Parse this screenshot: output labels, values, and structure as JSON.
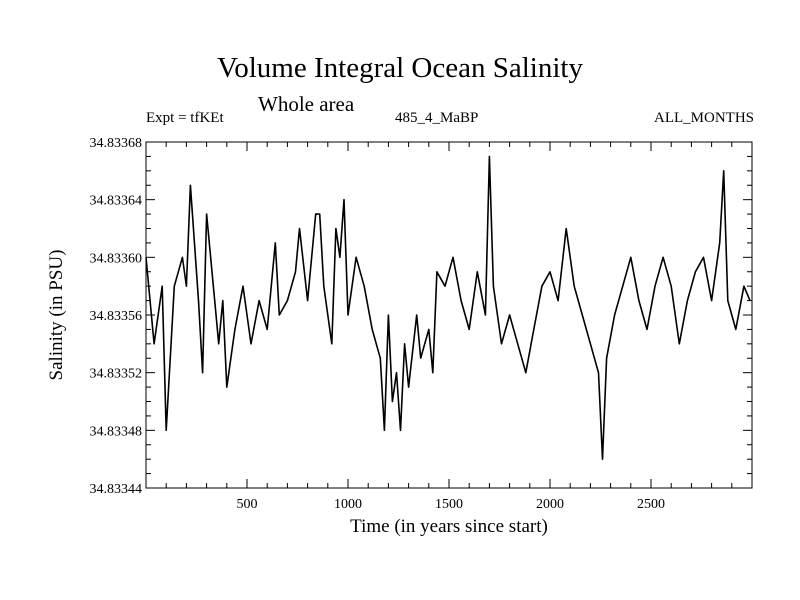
{
  "chart_data": {
    "type": "line",
    "title": "Volume Integral Ocean Salinity",
    "subtitle": "Whole area",
    "header_left": "Expt = tfKEt",
    "header_center": "485_4_MaBP",
    "header_right": "ALL_MONTHS",
    "xlabel": "Time (in years since start)",
    "ylabel": "Salinity (in PSU)",
    "xlim": [
      0,
      3000
    ],
    "ylim": [
      34.83344,
      34.83368
    ],
    "xticks": [
      500,
      1000,
      1500,
      2000,
      2500
    ],
    "xtick_labels": [
      "500",
      "1000",
      "1500",
      "2000",
      "2500"
    ],
    "yticks": [
      34.83344,
      34.83348,
      34.83352,
      34.83356,
      34.8336,
      34.83364,
      34.83368
    ],
    "ytick_labels": [
      "34.83344",
      "34.83348",
      "34.83352",
      "34.83356",
      "34.83360",
      "34.83364",
      "34.83368"
    ],
    "grid": false,
    "series": [
      {
        "color": "#000000",
        "x": [
          0,
          40,
          80,
          100,
          140,
          180,
          200,
          220,
          260,
          280,
          300,
          340,
          360,
          380,
          400,
          440,
          480,
          520,
          560,
          600,
          640,
          660,
          700,
          740,
          760,
          800,
          840,
          860,
          880,
          920,
          940,
          960,
          980,
          1000,
          1040,
          1080,
          1120,
          1160,
          1180,
          1200,
          1220,
          1240,
          1260,
          1280,
          1300,
          1340,
          1360,
          1400,
          1420,
          1440,
          1480,
          1520,
          1560,
          1600,
          1640,
          1680,
          1700,
          1720,
          1760,
          1800,
          1840,
          1880,
          1920,
          1960,
          2000,
          2040,
          2080,
          2120,
          2160,
          2200,
          2240,
          2260,
          2280,
          2320,
          2360,
          2400,
          2440,
          2480,
          2520,
          2560,
          2600,
          2640,
          2680,
          2720,
          2760,
          2800,
          2840,
          2860,
          2880,
          2920,
          2960,
          2990
        ],
        "values": [
          34.8336,
          34.83354,
          34.83358,
          34.83348,
          34.83358,
          34.8336,
          34.83358,
          34.83365,
          34.83357,
          34.83352,
          34.83363,
          34.83357,
          34.83354,
          34.83357,
          34.83351,
          34.83355,
          34.83358,
          34.83354,
          34.83357,
          34.83355,
          34.83361,
          34.83356,
          34.83357,
          34.83359,
          34.83362,
          34.83357,
          34.83363,
          34.83363,
          34.83358,
          34.83354,
          34.83362,
          34.8336,
          34.83364,
          34.83356,
          34.8336,
          34.83358,
          34.83355,
          34.83353,
          34.83348,
          34.83356,
          34.8335,
          34.83352,
          34.83348,
          34.83354,
          34.83351,
          34.83356,
          34.83353,
          34.83355,
          34.83352,
          34.83359,
          34.83358,
          34.8336,
          34.83357,
          34.83355,
          34.83359,
          34.83356,
          34.83367,
          34.83358,
          34.83354,
          34.83356,
          34.83354,
          34.83352,
          34.83355,
          34.83358,
          34.83359,
          34.83357,
          34.83362,
          34.83358,
          34.83356,
          34.83354,
          34.83352,
          34.83346,
          34.83353,
          34.83356,
          34.83358,
          34.8336,
          34.83357,
          34.83355,
          34.83358,
          34.8336,
          34.83358,
          34.83354,
          34.83357,
          34.83359,
          34.8336,
          34.83357,
          34.83361,
          34.83366,
          34.83357,
          34.83355,
          34.83358,
          34.83357
        ]
      }
    ]
  }
}
